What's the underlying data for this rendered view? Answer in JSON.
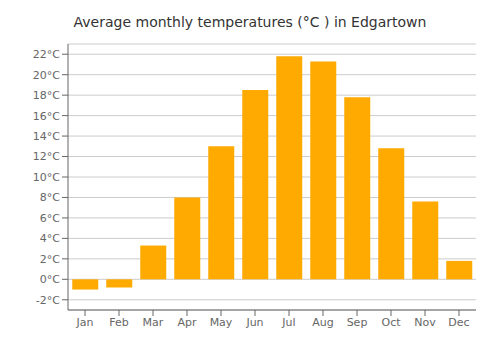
{
  "chart_data": {
    "type": "bar",
    "title": "Average monthly temperatures (°C ) in Edgartown",
    "categories": [
      "Jan",
      "Feb",
      "Mar",
      "Apr",
      "May",
      "Jun",
      "Jul",
      "Aug",
      "Sep",
      "Oct",
      "Nov",
      "Dec"
    ],
    "values": [
      -1.0,
      -0.8,
      3.3,
      8.0,
      13.0,
      18.5,
      21.8,
      21.3,
      17.8,
      12.8,
      7.6,
      1.8
    ],
    "color": "#FFAA00",
    "ylim": [
      -3,
      23
    ],
    "yticks": [
      {
        "value": -2,
        "label": "-2°C"
      },
      {
        "value": 0,
        "label": "0°C"
      },
      {
        "value": 2,
        "label": "2°C"
      },
      {
        "value": 4,
        "label": "4°C"
      },
      {
        "value": 6,
        "label": "6°C"
      },
      {
        "value": 8,
        "label": "8°C"
      },
      {
        "value": 10,
        "label": "10°C"
      },
      {
        "value": 12,
        "label": "12°C"
      },
      {
        "value": 14,
        "label": "14°C"
      },
      {
        "value": 16,
        "label": "16°C"
      },
      {
        "value": 18,
        "label": "18°C"
      },
      {
        "value": 20,
        "label": "20°C"
      },
      {
        "value": 22,
        "label": "22°C"
      }
    ],
    "grid": true
  }
}
